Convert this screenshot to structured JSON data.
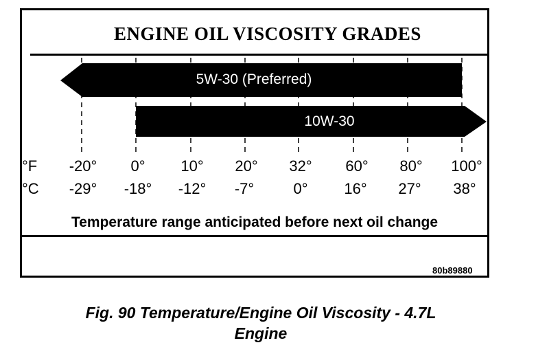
{
  "title": "ENGINE OIL VISCOSITY GRADES",
  "bars": [
    {
      "label": "5W-30 (Preferred)",
      "from_f": null,
      "to_f": 100,
      "open_left": true
    },
    {
      "label": "10W-30",
      "from_f": 0,
      "to_f": 100,
      "open_right": true
    }
  ],
  "units": {
    "fahrenheit": "°F",
    "celsius": "°C"
  },
  "ticks_f": [
    "-20°",
    "0°",
    "10°",
    "20°",
    "32°",
    "60°",
    "80°",
    "100°"
  ],
  "ticks_c": [
    "-29°",
    "-18°",
    "-12°",
    "-7°",
    "0°",
    "16°",
    "27°",
    "38°"
  ],
  "range_caption": "Temperature range anticipated before next oil change",
  "image_code": "80b89880",
  "figure_caption_line1": "Fig. 90 Temperature/Engine Oil Viscosity - 4.7L",
  "figure_caption_line2": "Engine"
}
